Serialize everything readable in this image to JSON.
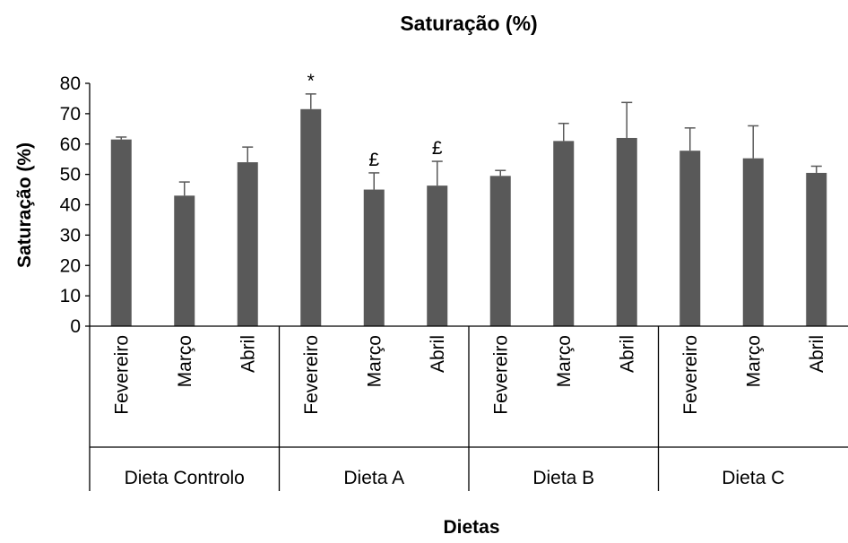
{
  "chart_data": {
    "type": "bar",
    "title": "Saturação (%)",
    "xlabel": "Dietas",
    "ylabel": "Saturação (%)",
    "ylim": [
      0,
      80
    ],
    "y_ticks": [
      "0",
      "10",
      "20",
      "30",
      "40",
      "50",
      "60",
      "70",
      "80"
    ],
    "grid": false,
    "legend": "none",
    "bar_color": "#595959",
    "groups": [
      {
        "name": "Dieta Controlo",
        "bars": [
          {
            "label": "Fevereiro",
            "value": 61.5,
            "error": 0.8,
            "annotation": ""
          },
          {
            "label": "Março",
            "value": 43,
            "error": 4.5,
            "annotation": ""
          },
          {
            "label": "Abril",
            "value": 54,
            "error": 5,
            "annotation": ""
          }
        ]
      },
      {
        "name": "Dieta A",
        "bars": [
          {
            "label": "Fevereiro",
            "value": 71.5,
            "error": 5,
            "annotation": "*"
          },
          {
            "label": "Março",
            "value": 45,
            "error": 5.5,
            "annotation": "£"
          },
          {
            "label": "Abril",
            "value": 46.3,
            "error": 8,
            "annotation": "£"
          }
        ]
      },
      {
        "name": "Dieta B",
        "bars": [
          {
            "label": "Fevereiro",
            "value": 49.5,
            "error": 1.8,
            "annotation": ""
          },
          {
            "label": "Março",
            "value": 61,
            "error": 5.8,
            "annotation": ""
          },
          {
            "label": "Abril",
            "value": 62,
            "error": 11.7,
            "annotation": ""
          }
        ]
      },
      {
        "name": "Dieta C",
        "bars": [
          {
            "label": "Fevereiro",
            "value": 57.8,
            "error": 7.5,
            "annotation": ""
          },
          {
            "label": "Março",
            "value": 55.3,
            "error": 10.7,
            "annotation": ""
          },
          {
            "label": "Abril",
            "value": 50.5,
            "error": 2.2,
            "annotation": ""
          }
        ]
      }
    ]
  }
}
